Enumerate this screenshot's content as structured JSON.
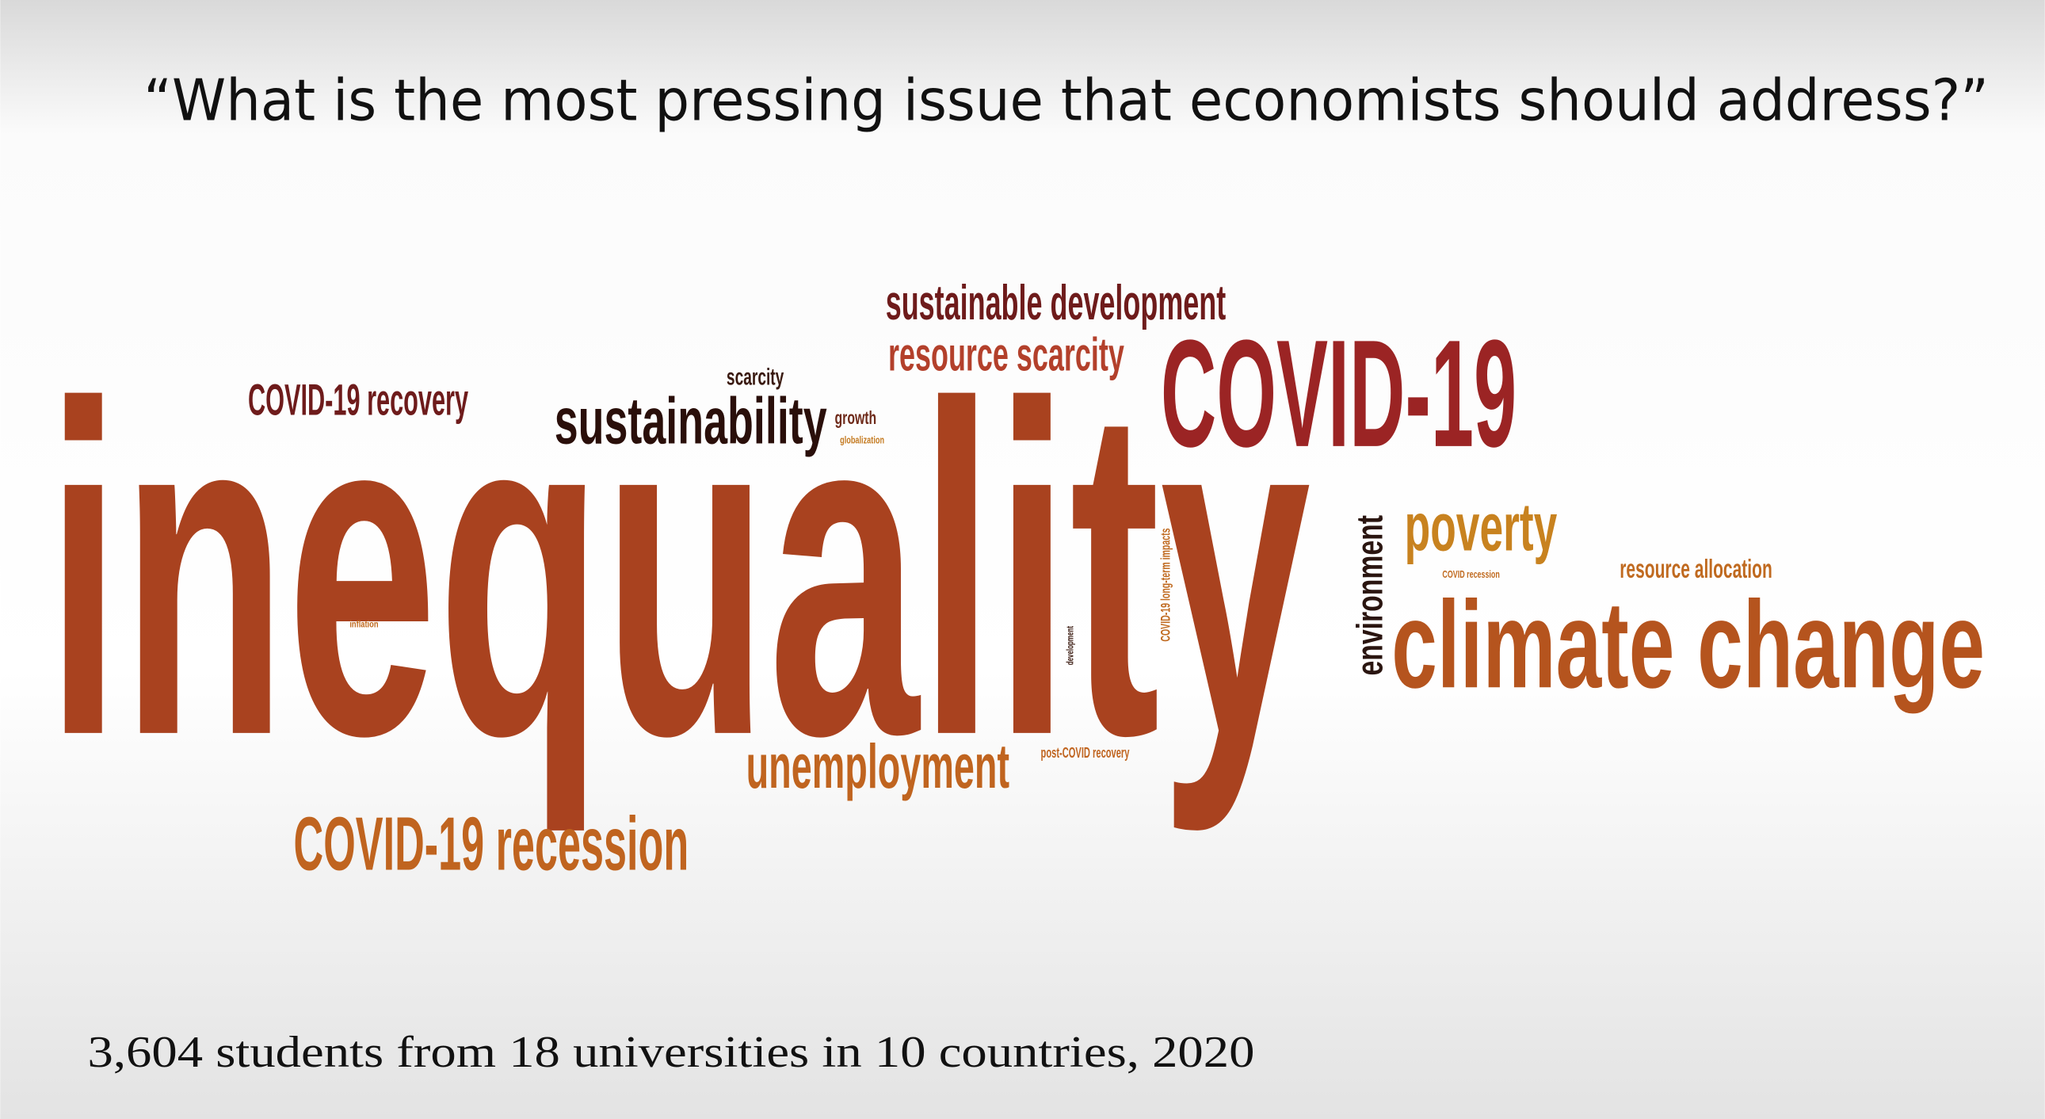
{
  "slide": {
    "title": "“What is the most pressing issue that economists should address?”",
    "words": [
      {
        "text": "inequality",
        "color": "#a9421f"
      },
      {
        "text": "COVID-19",
        "color": "#9b2424"
      },
      {
        "text": "sustainable development",
        "color": "#6e1b1b"
      },
      {
        "text": "resource scarcity",
        "color": "#b3402b"
      },
      {
        "text": "COVID-19 recovery",
        "color": "#6e1b1b"
      },
      {
        "text": "scarcity",
        "color": "#3a1a10"
      },
      {
        "text": "sustainability",
        "color": "#2a0f0a"
      },
      {
        "text": "growth",
        "color": "#6e2a1a"
      },
      {
        "text": "globalization",
        "color": "#c47a20"
      },
      {
        "text": "poverty",
        "color": "#c8821f"
      },
      {
        "text": "climate change",
        "color": "#b5541e"
      },
      {
        "text": "environment",
        "color": "#2a1510"
      },
      {
        "text": "resource allocation",
        "color": "#c06a20"
      },
      {
        "text": "unemployment",
        "color": "#c0641f"
      },
      {
        "text": "post-COVID recovery",
        "color": "#c0641f"
      },
      {
        "text": "COVID-19 recession",
        "color": "#c0641f"
      },
      {
        "text": "COVID-19 long-term impacts",
        "color": "#c06a20"
      },
      {
        "text": "development",
        "color": "#3a1a10"
      },
      {
        "text": "inflation",
        "color": "#c06a20"
      },
      {
        "text": "COVID recession",
        "color": "#c06a20"
      }
    ],
    "footnote": "3,604 students from 18 universities in 10 countries, 2020"
  }
}
